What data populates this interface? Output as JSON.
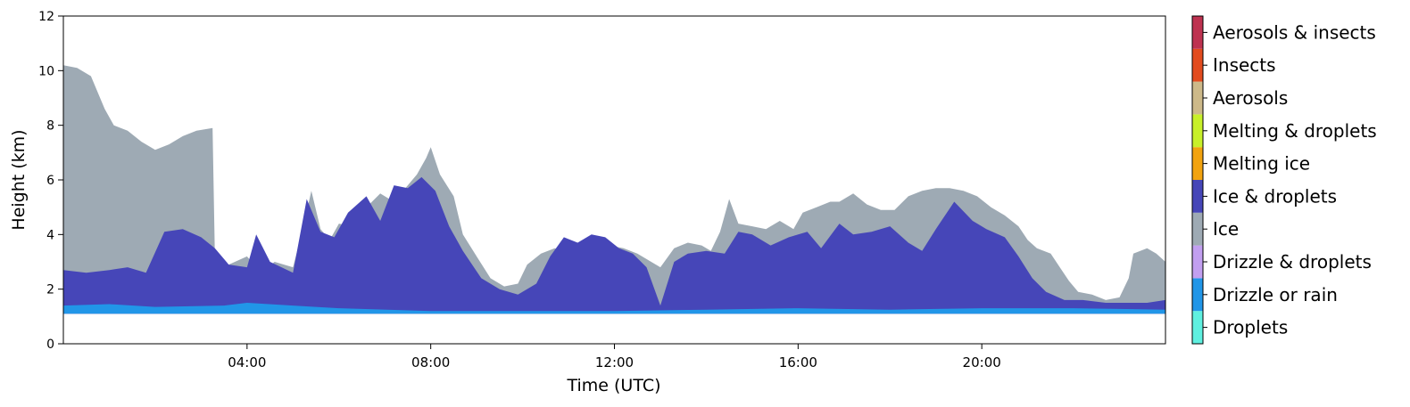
{
  "chart_data": {
    "type": "heatmap",
    "title": "",
    "xlabel": "Time (UTC)",
    "ylabel": "Height (km)",
    "xlim_hours": [
      0,
      24
    ],
    "ylim": [
      0,
      12
    ],
    "x_ticks": [
      {
        "hour": 4,
        "label": "04:00"
      },
      {
        "hour": 8,
        "label": "08:00"
      },
      {
        "hour": 12,
        "label": "12:00"
      },
      {
        "hour": 16,
        "label": "16:00"
      },
      {
        "hour": 20,
        "label": "20:00"
      }
    ],
    "y_ticks": [
      0,
      2,
      4,
      6,
      8,
      10,
      12
    ],
    "grid": false,
    "colorbar": [
      {
        "label": "Droplets",
        "color": "#5ff0e0"
      },
      {
        "label": "Drizzle or rain",
        "color": "#2196e8"
      },
      {
        "label": "Drizzle & droplets",
        "color": "#c29ff0"
      },
      {
        "label": "Ice",
        "color": "#9eaab4"
      },
      {
        "label": "Ice & droplets",
        "color": "#4646b8"
      },
      {
        "label": "Melting ice",
        "color": "#f2a30f"
      },
      {
        "label": "Melting & droplets",
        "color": "#c8f02a"
      },
      {
        "label": "Aerosols",
        "color": "#cdb989"
      },
      {
        "label": "Insects",
        "color": "#e24b1e"
      },
      {
        "label": "Aerosols & insects",
        "color": "#be3250"
      }
    ],
    "layers": [
      {
        "class": "Ice",
        "top_km": [
          [
            0,
            10.2
          ],
          [
            0.3,
            10.1
          ],
          [
            0.6,
            9.8
          ],
          [
            0.9,
            8.6
          ],
          [
            1.1,
            8.0
          ],
          [
            1.4,
            7.8
          ],
          [
            1.7,
            7.4
          ],
          [
            2.0,
            7.1
          ],
          [
            2.3,
            7.3
          ],
          [
            2.6,
            7.6
          ],
          [
            2.9,
            7.8
          ],
          [
            3.25,
            7.9
          ],
          [
            3.3,
            3.2
          ],
          [
            3.6,
            2.9
          ],
          [
            4.0,
            3.2
          ],
          [
            4.3,
            2.6
          ],
          [
            4.6,
            3.0
          ],
          [
            5.0,
            2.8
          ],
          [
            5.2,
            4.1
          ],
          [
            5.4,
            5.6
          ],
          [
            5.6,
            4.2
          ],
          [
            5.8,
            3.8
          ],
          [
            6.0,
            4.4
          ],
          [
            6.3,
            4.3
          ],
          [
            6.6,
            5.0
          ],
          [
            6.9,
            5.5
          ],
          [
            7.1,
            5.3
          ],
          [
            7.4,
            5.6
          ],
          [
            7.7,
            6.2
          ],
          [
            7.9,
            6.8
          ],
          [
            8.0,
            7.2
          ],
          [
            8.2,
            6.2
          ],
          [
            8.5,
            5.4
          ],
          [
            8.7,
            4.0
          ],
          [
            9.0,
            3.2
          ],
          [
            9.3,
            2.4
          ],
          [
            9.6,
            2.1
          ],
          [
            9.9,
            2.2
          ],
          [
            10.1,
            2.9
          ],
          [
            10.4,
            3.3
          ],
          [
            10.7,
            3.5
          ],
          [
            11.0,
            3.3
          ],
          [
            11.3,
            3.5
          ],
          [
            11.6,
            3.6
          ],
          [
            11.9,
            3.6
          ],
          [
            12.2,
            3.5
          ],
          [
            12.5,
            3.3
          ],
          [
            12.8,
            3.0
          ],
          [
            13.0,
            2.8
          ],
          [
            13.3,
            3.5
          ],
          [
            13.6,
            3.7
          ],
          [
            13.9,
            3.6
          ],
          [
            14.1,
            3.4
          ],
          [
            14.3,
            4.1
          ],
          [
            14.5,
            5.3
          ],
          [
            14.7,
            4.4
          ],
          [
            15.0,
            4.3
          ],
          [
            15.3,
            4.2
          ],
          [
            15.6,
            4.5
          ],
          [
            15.9,
            4.2
          ],
          [
            16.1,
            4.8
          ],
          [
            16.4,
            5.0
          ],
          [
            16.7,
            5.2
          ],
          [
            16.9,
            5.2
          ],
          [
            17.2,
            5.5
          ],
          [
            17.5,
            5.1
          ],
          [
            17.8,
            4.9
          ],
          [
            18.1,
            4.9
          ],
          [
            18.4,
            5.4
          ],
          [
            18.7,
            5.6
          ],
          [
            19.0,
            5.7
          ],
          [
            19.3,
            5.7
          ],
          [
            19.6,
            5.6
          ],
          [
            19.9,
            5.4
          ],
          [
            20.2,
            5.0
          ],
          [
            20.5,
            4.7
          ],
          [
            20.8,
            4.3
          ],
          [
            21.0,
            3.8
          ],
          [
            21.2,
            3.5
          ],
          [
            21.5,
            3.3
          ],
          [
            21.7,
            2.8
          ],
          [
            21.9,
            2.3
          ],
          [
            22.1,
            1.9
          ],
          [
            22.4,
            1.8
          ],
          [
            22.7,
            1.6
          ],
          [
            23.0,
            1.7
          ],
          [
            23.2,
            2.4
          ],
          [
            23.3,
            3.3
          ],
          [
            23.6,
            3.5
          ],
          [
            23.8,
            3.3
          ],
          [
            24.0,
            3.0
          ]
        ]
      },
      {
        "class": "Ice & droplets",
        "top_km": [
          [
            0,
            2.7
          ],
          [
            0.5,
            2.6
          ],
          [
            1.0,
            2.7
          ],
          [
            1.4,
            2.8
          ],
          [
            1.8,
            2.6
          ],
          [
            2.2,
            4.1
          ],
          [
            2.6,
            4.2
          ],
          [
            3.0,
            3.9
          ],
          [
            3.3,
            3.5
          ],
          [
            3.6,
            2.9
          ],
          [
            4.0,
            2.8
          ],
          [
            4.2,
            4.0
          ],
          [
            4.5,
            3.0
          ],
          [
            5.0,
            2.6
          ],
          [
            5.3,
            5.3
          ],
          [
            5.6,
            4.1
          ],
          [
            5.9,
            3.9
          ],
          [
            6.2,
            4.8
          ],
          [
            6.6,
            5.4
          ],
          [
            6.9,
            4.5
          ],
          [
            7.2,
            5.8
          ],
          [
            7.5,
            5.7
          ],
          [
            7.8,
            6.1
          ],
          [
            8.1,
            5.6
          ],
          [
            8.4,
            4.3
          ],
          [
            8.7,
            3.4
          ],
          [
            9.1,
            2.4
          ],
          [
            9.5,
            2.0
          ],
          [
            9.9,
            1.8
          ],
          [
            10.3,
            2.2
          ],
          [
            10.6,
            3.2
          ],
          [
            10.9,
            3.9
          ],
          [
            11.2,
            3.7
          ],
          [
            11.5,
            4.0
          ],
          [
            11.8,
            3.9
          ],
          [
            12.1,
            3.5
          ],
          [
            12.4,
            3.3
          ],
          [
            12.7,
            2.8
          ],
          [
            13.0,
            1.4
          ],
          [
            13.3,
            3.0
          ],
          [
            13.6,
            3.3
          ],
          [
            14.0,
            3.4
          ],
          [
            14.4,
            3.3
          ],
          [
            14.7,
            4.1
          ],
          [
            15.0,
            4.0
          ],
          [
            15.4,
            3.6
          ],
          [
            15.8,
            3.9
          ],
          [
            16.2,
            4.1
          ],
          [
            16.5,
            3.5
          ],
          [
            16.9,
            4.4
          ],
          [
            17.2,
            4.0
          ],
          [
            17.6,
            4.1
          ],
          [
            18.0,
            4.3
          ],
          [
            18.4,
            3.7
          ],
          [
            18.7,
            3.4
          ],
          [
            19.0,
            4.2
          ],
          [
            19.4,
            5.2
          ],
          [
            19.8,
            4.5
          ],
          [
            20.1,
            4.2
          ],
          [
            20.5,
            3.9
          ],
          [
            20.8,
            3.2
          ],
          [
            21.1,
            2.4
          ],
          [
            21.4,
            1.9
          ],
          [
            21.8,
            1.6
          ],
          [
            22.2,
            1.6
          ],
          [
            22.7,
            1.5
          ],
          [
            23.2,
            1.5
          ],
          [
            23.6,
            1.5
          ],
          [
            24.0,
            1.6
          ]
        ]
      },
      {
        "class": "Drizzle or rain",
        "top_km": [
          [
            0,
            1.4
          ],
          [
            1.0,
            1.45
          ],
          [
            2.0,
            1.35
          ],
          [
            3.5,
            1.4
          ],
          [
            4.0,
            1.5
          ],
          [
            5.0,
            1.4
          ],
          [
            6.0,
            1.3
          ],
          [
            8.0,
            1.2
          ],
          [
            10.0,
            1.2
          ],
          [
            12.0,
            1.2
          ],
          [
            14.0,
            1.25
          ],
          [
            16.0,
            1.3
          ],
          [
            18.0,
            1.25
          ],
          [
            20.0,
            1.3
          ],
          [
            22.0,
            1.3
          ],
          [
            24.0,
            1.25
          ]
        ]
      }
    ]
  }
}
